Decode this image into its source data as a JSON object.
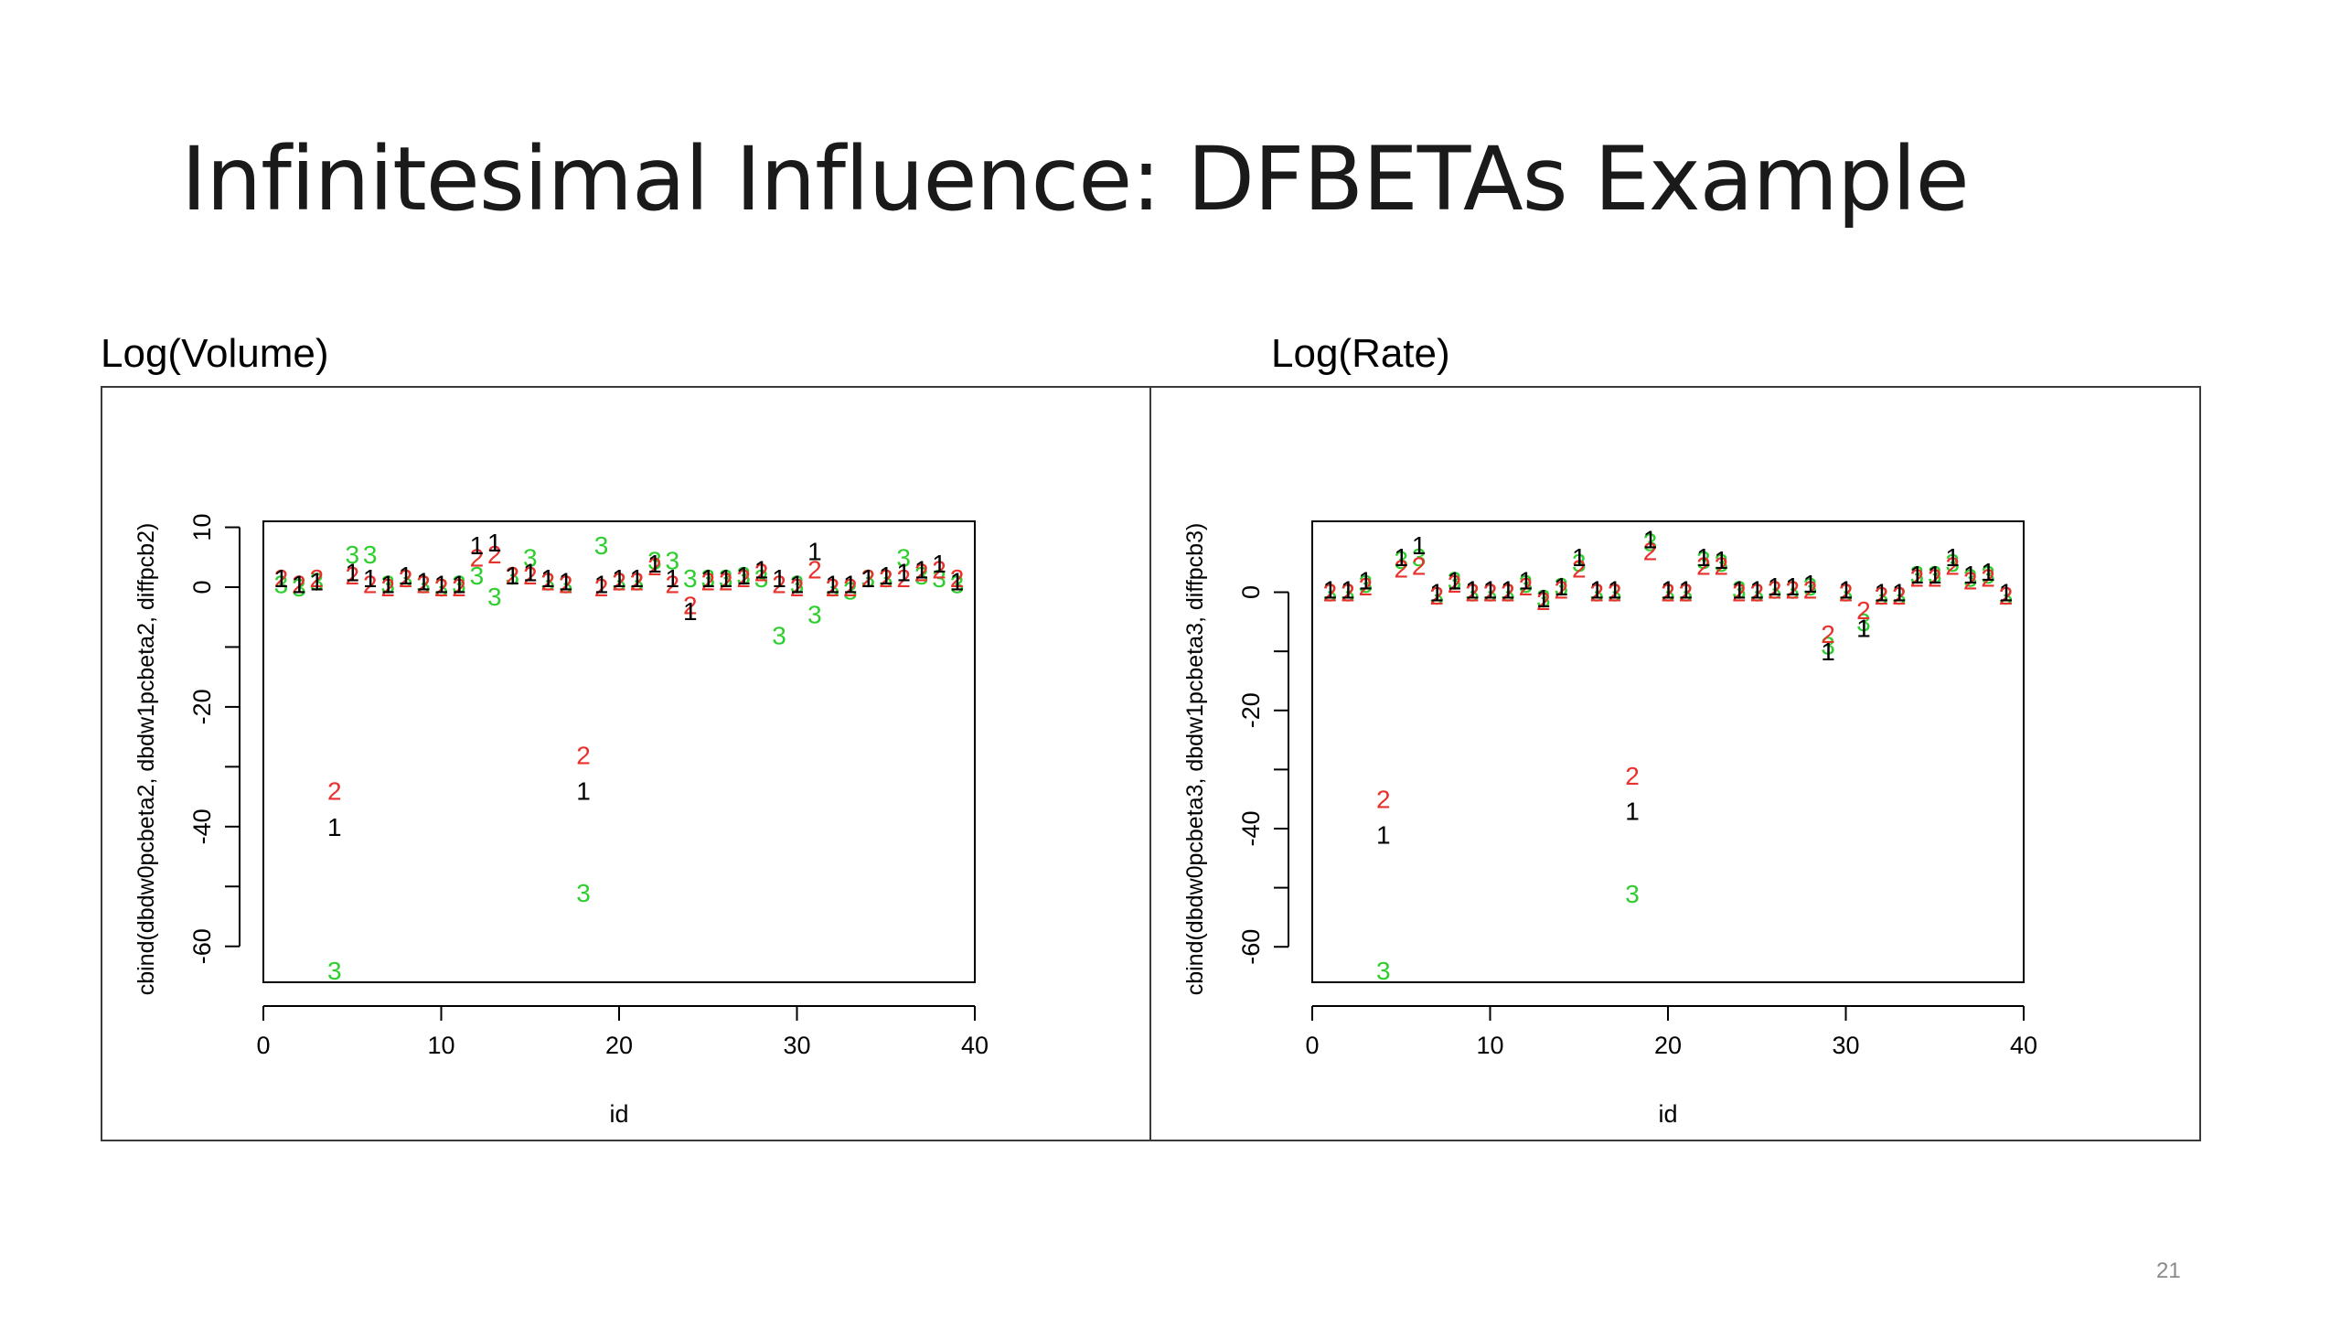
{
  "slide": {
    "title": "Infinitesimal Influence: DFBETAs Example",
    "page_number": "21"
  },
  "panels": [
    {
      "caption": "Log(Volume)"
    },
    {
      "caption": "Log(Rate)"
    }
  ],
  "series_colors": {
    "1": "#000000",
    "2": "#e8312c",
    "3": "#2fce2f"
  },
  "chart_data": [
    {
      "type": "scatter",
      "xlabel": "id",
      "ylabel": "cbind(dbdw0pcbeta2, dbdw1pcbeta2, diffpcb2)",
      "xlim": [
        0,
        40
      ],
      "ylim": [
        -66,
        11
      ],
      "xticks": [
        0,
        10,
        20,
        30,
        40
      ],
      "yticks": [
        10,
        0,
        -20,
        -40,
        -60
      ],
      "point_labels": [
        "1",
        "2",
        "3"
      ],
      "x": [
        1,
        2,
        3,
        4,
        5,
        6,
        7,
        8,
        9,
        10,
        11,
        12,
        13,
        14,
        15,
        16,
        17,
        18,
        19,
        20,
        21,
        22,
        23,
        24,
        25,
        26,
        27,
        28,
        29,
        30,
        31,
        32,
        33,
        34,
        35,
        36,
        37,
        38,
        39
      ],
      "series": [
        {
          "label": "1",
          "values": [
            1.5,
            0.5,
            1,
            -40,
            2.5,
            1.5,
            0.5,
            2,
            1,
            0.5,
            0.5,
            7,
            7.5,
            2,
            2.5,
            1.5,
            1,
            -34,
            0.5,
            1.5,
            1.5,
            4,
            1.5,
            -4,
            1.5,
            1.5,
            2,
            3,
            1.5,
            0.5,
            6,
            0.5,
            0.5,
            1.5,
            2,
            2.5,
            3,
            4,
            1
          ]
        },
        {
          "label": "2",
          "values": [
            1.5,
            0.5,
            1.5,
            -34,
            2,
            0.5,
            0,
            1.5,
            0.5,
            0,
            0,
            5,
            5.5,
            2,
            2,
            1,
            0.5,
            -28,
            0,
            1,
            1,
            3.5,
            0.5,
            -3,
            1,
            1,
            1.5,
            2.5,
            0.5,
            0,
            3,
            0,
            0,
            1.5,
            1.5,
            1.5,
            2.5,
            3,
            1.5
          ]
        },
        {
          "label": "3",
          "values": [
            0.5,
            0,
            1,
            -64,
            5.5,
            5.5,
            0.5,
            1.5,
            0.5,
            0,
            0.5,
            2,
            -1.5,
            2,
            5,
            1,
            0.5,
            -51,
            7,
            1,
            1,
            4.5,
            4.5,
            1.5,
            1.5,
            1.5,
            2,
            1.5,
            -8,
            0.5,
            -4.5,
            0,
            -0.5,
            1.5,
            1.5,
            5,
            2,
            1.5,
            0.5
          ]
        }
      ]
    },
    {
      "type": "scatter",
      "xlabel": "id",
      "ylabel": "cbind(dbdw0pcbeta3, dbdw1pcbeta3, diffpcb3)",
      "xlim": [
        0,
        40
      ],
      "ylim": [
        -66,
        12
      ],
      "xticks": [
        0,
        10,
        20,
        30,
        40
      ],
      "yticks": [
        0,
        -20,
        -40,
        -60
      ],
      "point_labels": [
        "1",
        "2",
        "3"
      ],
      "x": [
        1,
        2,
        3,
        4,
        5,
        6,
        7,
        8,
        9,
        10,
        11,
        12,
        13,
        14,
        15,
        16,
        17,
        18,
        19,
        20,
        21,
        22,
        23,
        24,
        25,
        26,
        27,
        28,
        29,
        30,
        31,
        32,
        33,
        34,
        35,
        36,
        37,
        38,
        39
      ],
      "series": [
        {
          "label": "1",
          "values": [
            0.5,
            0.5,
            2,
            -41,
            6,
            8,
            0,
            2,
            0.5,
            0.5,
            0.5,
            2,
            -1,
            1,
            6,
            0.5,
            0.5,
            -37,
            9,
            0.5,
            0.5,
            6,
            5.5,
            0.5,
            0.5,
            1,
            1,
            1.5,
            -10,
            0.5,
            -6,
            0,
            0,
            3,
            3,
            6,
            3,
            3.5,
            0
          ]
        },
        {
          "label": "2",
          "values": [
            0,
            0,
            1,
            -35,
            4,
            4.5,
            -0.5,
            1.5,
            0,
            0,
            0,
            1,
            -1.5,
            0.5,
            4,
            0,
            0,
            -31,
            7,
            0,
            0,
            4.5,
            4.5,
            0,
            0,
            0.5,
            0.5,
            0.5,
            -7,
            0,
            -3,
            -0.5,
            -0.5,
            2.5,
            2.5,
            4.5,
            2,
            2.5,
            -0.5
          ]
        },
        {
          "label": "3",
          "values": [
            0,
            0,
            1.5,
            -64,
            5.5,
            6,
            -0.5,
            2,
            0,
            0,
            0,
            1.5,
            -1,
            1,
            5,
            0,
            0,
            -51,
            8.5,
            0,
            0,
            5.5,
            5,
            0.5,
            0,
            0.5,
            0.5,
            1,
            -9,
            0,
            -5,
            -0.5,
            -0.5,
            3,
            3,
            5,
            2.5,
            3,
            -0.5
          ]
        }
      ]
    }
  ]
}
